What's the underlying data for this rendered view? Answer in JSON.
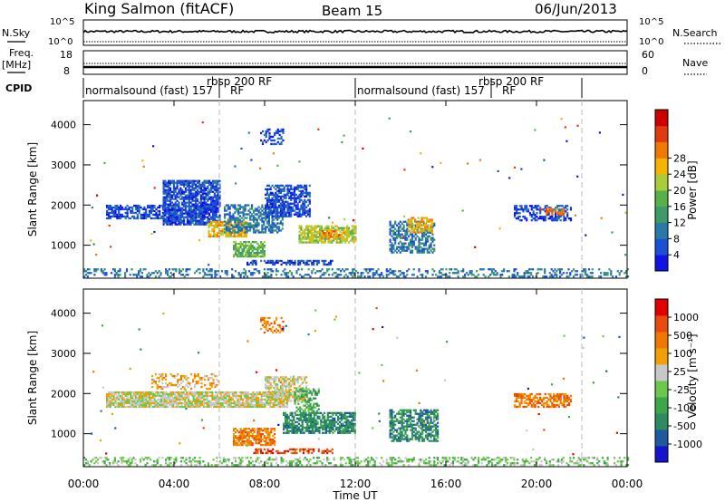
{
  "header": {
    "station": "King Salmon (fitACF)",
    "beam": "Beam 15",
    "date": "06/Jun/2013"
  },
  "strip_nsky": {
    "left_label": "N.Sky",
    "right_label": "N.Search",
    "ticks_left": [
      "10^5",
      "10^0"
    ],
    "ticks_right": [
      "10^5",
      "10^0"
    ]
  },
  "strip_freq": {
    "left_label_top": "Freq.",
    "left_label_unit": "[MHz]",
    "right_label": "Nave",
    "ticks_left": [
      "18",
      "8"
    ],
    "ticks_right": [
      "60",
      "0"
    ]
  },
  "cpid": {
    "label": "CPID",
    "segments": [
      {
        "text": "normalsound (fast) 157",
        "rf": "RF",
        "start": 0,
        "end": 6
      },
      {
        "text": "rbsp 200 RF",
        "start": 6,
        "end": 12
      },
      {
        "text": "normalsound (fast) 157",
        "rf": "RF",
        "start": 12,
        "end": 18
      },
      {
        "text": "rbsp 200 RF",
        "start": 18,
        "end": 22
      }
    ]
  },
  "chart_data": [
    {
      "type": "heatmap",
      "name": "power",
      "ylabel": "Slant Range [km]",
      "yticks": [
        1000,
        2000,
        3000,
        4000
      ],
      "ylim": [
        180,
        4600
      ],
      "xlim": [
        0,
        24
      ],
      "colorbar": {
        "label": "Power [dB]",
        "ticks": [
          "4",
          "8",
          "12",
          "16",
          "20",
          "24",
          "28"
        ],
        "colors": [
          "#1212e6",
          "#1a4fd6",
          "#2a7aa8",
          "#3e9a6a",
          "#57b04a",
          "#a8cc3a",
          "#f5b400",
          "#f07a00",
          "#e23a10",
          "#cc0000"
        ]
      },
      "regions": [
        {
          "t0": 0.0,
          "t1": 24.0,
          "r0": 200,
          "r1": 420,
          "level": 2,
          "density": 0.35
        },
        {
          "t0": 1.0,
          "t1": 4.2,
          "r0": 1650,
          "r1": 2000,
          "level": 1,
          "density": 0.6
        },
        {
          "t0": 3.5,
          "t1": 6.0,
          "r0": 1500,
          "r1": 2600,
          "level": 1,
          "density": 0.8
        },
        {
          "t0": 5.5,
          "t1": 7.2,
          "r0": 1200,
          "r1": 1600,
          "level": 6,
          "density": 0.75
        },
        {
          "t0": 6.2,
          "t1": 8.8,
          "r0": 1300,
          "r1": 2000,
          "level": 2,
          "density": 0.6
        },
        {
          "t0": 8.0,
          "t1": 10.0,
          "r0": 1700,
          "r1": 2500,
          "level": 1,
          "density": 0.7
        },
        {
          "t0": 6.6,
          "t1": 8.0,
          "r0": 700,
          "r1": 1100,
          "level": 4,
          "density": 0.7
        },
        {
          "t0": 7.2,
          "t1": 11.0,
          "r0": 500,
          "r1": 620,
          "level": 1,
          "density": 0.6
        },
        {
          "t0": 9.5,
          "t1": 12.0,
          "r0": 1050,
          "r1": 1500,
          "level": 5,
          "density": 0.75
        },
        {
          "t0": 10.5,
          "t1": 11.5,
          "r0": 1150,
          "r1": 1350,
          "level": 7,
          "density": 0.5
        },
        {
          "t0": 7.8,
          "t1": 8.8,
          "r0": 3500,
          "r1": 3900,
          "level": 1,
          "density": 0.4
        },
        {
          "t0": 13.5,
          "t1": 15.5,
          "r0": 800,
          "r1": 1600,
          "level": 2,
          "density": 0.55
        },
        {
          "t0": 14.3,
          "t1": 15.4,
          "r0": 1300,
          "r1": 1700,
          "level": 6,
          "density": 0.6
        },
        {
          "t0": 19.0,
          "t1": 21.5,
          "r0": 1600,
          "r1": 2000,
          "level": 1,
          "density": 0.55
        },
        {
          "t0": 20.4,
          "t1": 21.2,
          "r0": 1750,
          "r1": 1900,
          "level": 7,
          "density": 0.6
        }
      ]
    },
    {
      "type": "heatmap",
      "name": "velocity",
      "ylabel": "Slant Range [km]",
      "yticks": [
        1000,
        2000,
        3000,
        4000
      ],
      "ylim": [
        180,
        4600
      ],
      "xlim": [
        0,
        24
      ],
      "xticks": [
        "00:00",
        "04:00",
        "08:00",
        "12:00",
        "16:00",
        "20:00",
        "00:00"
      ],
      "xlabel": "Time UT",
      "colorbar": {
        "label": "Velocity [m s⁻¹]",
        "ticks": [
          "1000",
          "500",
          "100",
          "25",
          "-25",
          "-100",
          "-500",
          "-1000"
        ],
        "colors": [
          "#1414cc",
          "#1e5aa0",
          "#2e8a60",
          "#3aa848",
          "#6cc84a",
          "#c8c8c8",
          "#f0a000",
          "#f07800",
          "#e84a10",
          "#e00000"
        ]
      },
      "regions": [
        {
          "t0": 0.0,
          "t1": 24.0,
          "r0": 200,
          "r1": 420,
          "level": 4,
          "density": 0.35
        },
        {
          "t0": 1.0,
          "t1": 9.0,
          "r0": 1650,
          "r1": 2050,
          "level": 5,
          "density": 0.85
        },
        {
          "t0": 3.0,
          "t1": 6.0,
          "r0": 2100,
          "r1": 2500,
          "level": 6,
          "density": 0.35
        },
        {
          "t0": 8.0,
          "t1": 9.8,
          "r0": 1800,
          "r1": 2400,
          "level": 5,
          "density": 0.6
        },
        {
          "t0": 6.6,
          "t1": 8.4,
          "r0": 700,
          "r1": 1150,
          "level": 7,
          "density": 0.75
        },
        {
          "t0": 7.5,
          "t1": 11.0,
          "r0": 500,
          "r1": 620,
          "level": 8,
          "density": 0.55
        },
        {
          "t0": 8.8,
          "t1": 12.0,
          "r0": 1000,
          "r1": 1500,
          "level": 2,
          "density": 0.75
        },
        {
          "t0": 9.3,
          "t1": 10.4,
          "r0": 1500,
          "r1": 2100,
          "level": 3,
          "density": 0.5
        },
        {
          "t0": 7.8,
          "t1": 8.8,
          "r0": 3500,
          "r1": 3900,
          "level": 7,
          "density": 0.35
        },
        {
          "t0": 13.5,
          "t1": 15.6,
          "r0": 800,
          "r1": 1600,
          "level": 2,
          "density": 0.6
        },
        {
          "t0": 19.0,
          "t1": 21.5,
          "r0": 1650,
          "r1": 2000,
          "level": 7,
          "density": 0.6
        }
      ]
    }
  ]
}
